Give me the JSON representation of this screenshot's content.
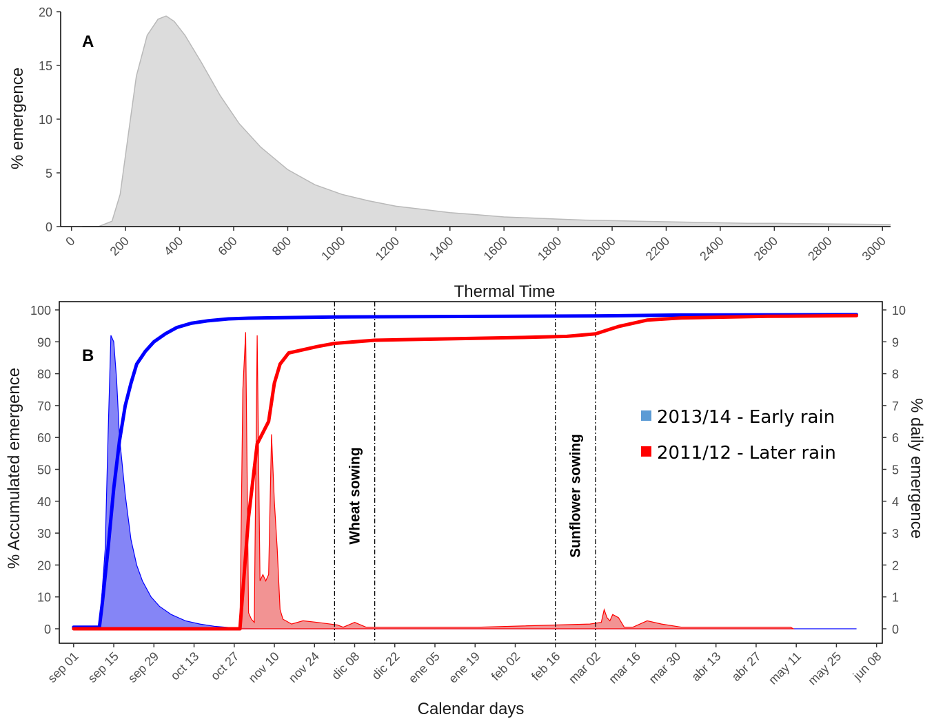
{
  "chart_data": [
    {
      "id": "A",
      "type": "area",
      "panel_label": "A",
      "xlabel": "Thermal Time",
      "ylabel": "% emergence",
      "xlim": [
        -40,
        3030
      ],
      "ylim": [
        0,
        20
      ],
      "x_ticks": [
        0,
        200,
        400,
        600,
        800,
        1000,
        1200,
        1400,
        1600,
        1800,
        2000,
        2200,
        2400,
        2600,
        2800,
        3000
      ],
      "y_ticks": [
        0,
        5,
        10,
        15,
        20
      ],
      "fill_color": "#dcdcdc",
      "line_color": "#b9b9b9",
      "x": [
        40,
        100,
        150,
        180,
        210,
        240,
        280,
        320,
        350,
        380,
        420,
        480,
        550,
        620,
        700,
        800,
        900,
        1000,
        1100,
        1200,
        1300,
        1400,
        1500,
        1600,
        1700,
        1800,
        1900,
        2000,
        2100,
        2200,
        2300,
        2400,
        2500,
        2600,
        2800,
        3000,
        3030
      ],
      "values": [
        0,
        0,
        0.5,
        3.0,
        8.5,
        14.0,
        17.8,
        19.3,
        19.6,
        19.1,
        17.8,
        15.3,
        12.2,
        9.6,
        7.4,
        5.3,
        3.9,
        3.0,
        2.4,
        1.9,
        1.6,
        1.3,
        1.1,
        0.9,
        0.8,
        0.7,
        0.6,
        0.55,
        0.5,
        0.45,
        0.4,
        0.35,
        0.3,
        0.3,
        0.25,
        0.2,
        0.2
      ]
    },
    {
      "id": "B",
      "type": "line",
      "panel_label": "B",
      "xlabel": "Calendar days",
      "ylabel_left": "% Accumulated emergence",
      "ylabel_right": "% daily emergence",
      "date_ticks": [
        "sep 01",
        "sep 15",
        "sep 29",
        "oct 13",
        "oct 27",
        "nov 10",
        "nov 24",
        "dic 08",
        "dic 22",
        "ene 05",
        "ene 19",
        "feb 02",
        "feb 16",
        "mar 02",
        "mar 16",
        "mar 30",
        "abr 13",
        "abr 27",
        "may 11",
        "may 25",
        "jun 08"
      ],
      "xlim": [
        "2013-08-27",
        "2014-06-10"
      ],
      "ylim_left": [
        0,
        100
      ],
      "ylim_right": [
        0,
        10
      ],
      "y_ticks_left": [
        0,
        10,
        20,
        30,
        40,
        50,
        60,
        70,
        80,
        90,
        100
      ],
      "y_ticks_right": [
        0,
        1,
        2,
        3,
        4,
        5,
        6,
        7,
        8,
        9,
        10
      ],
      "vertical_lines": [
        {
          "date": "2013-12-01",
          "label": "Wheat sowing"
        },
        {
          "date": "2013-12-15"
        },
        {
          "date": "2014-02-16",
          "label": "Sunflower sowing"
        },
        {
          "date": "2014-03-02"
        }
      ],
      "series": [
        {
          "name": "2013/14 - Early rain",
          "legend_color": "#5b9bd5",
          "line_color": "#0000ff",
          "fill_color": "#7070f5",
          "daily": {
            "x": [
              "2013-09-01",
              "2013-09-10",
              "2013-09-12",
              "2013-09-13",
              "2013-09-14",
              "2013-09-15",
              "2013-09-16",
              "2013-09-17",
              "2013-09-19",
              "2013-09-21",
              "2013-09-23",
              "2013-09-25",
              "2013-09-28",
              "2013-10-01",
              "2013-10-05",
              "2013-10-10",
              "2013-10-15",
              "2013-10-20",
              "2013-10-25",
              "2013-10-29",
              "2013-11-05",
              "2014-06-01"
            ],
            "values": [
              0,
              0,
              2.5,
              6.0,
              9.2,
              9.0,
              7.8,
              6.0,
              4.2,
              2.8,
              2.0,
              1.5,
              1.0,
              0.7,
              0.45,
              0.25,
              0.15,
              0.08,
              0.04,
              0.02,
              0,
              0
            ]
          },
          "accumulated": {
            "x": [
              "2013-09-01",
              "2013-09-10",
              "2013-09-11",
              "2013-09-13",
              "2013-09-15",
              "2013-09-17",
              "2013-09-19",
              "2013-09-21",
              "2013-09-23",
              "2013-09-26",
              "2013-09-29",
              "2013-10-03",
              "2013-10-07",
              "2013-10-12",
              "2013-10-18",
              "2013-10-25",
              "2013-11-01",
              "2013-11-15",
              "2013-12-01",
              "2014-03-01",
              "2014-04-01",
              "2014-06-01"
            ],
            "values": [
              0.5,
              0.5,
              8,
              25,
              44,
              59,
              70,
              77,
              83,
              87,
              90,
              92.5,
              94.5,
              95.8,
              96.6,
              97.2,
              97.4,
              97.6,
              97.8,
              98.1,
              98.4,
              98.5
            ]
          }
        },
        {
          "name": "2011/12 - Later rain",
          "legend_color": "#ff0000",
          "line_color": "#ff0000",
          "fill_color": "#f08080",
          "daily": {
            "x": [
              "2013-09-01",
              "2013-10-29",
              "2013-10-30",
              "2013-10-31",
              "2013-11-01",
              "2013-11-02",
              "2013-11-03",
              "2013-11-04",
              "2013-11-05",
              "2013-11-06",
              "2013-11-07",
              "2013-11-08",
              "2013-11-09",
              "2013-11-10",
              "2013-11-11",
              "2013-11-12",
              "2013-11-13",
              "2013-11-14",
              "2013-11-16",
              "2013-11-20",
              "2013-11-25",
              "2013-12-02",
              "2013-12-04",
              "2013-12-08",
              "2013-12-12",
              "2014-01-20",
              "2014-02-28",
              "2014-03-04",
              "2014-03-05",
              "2014-03-06",
              "2014-03-07",
              "2014-03-08",
              "2014-03-10",
              "2014-03-12",
              "2014-03-15",
              "2014-03-20",
              "2014-03-25",
              "2014-04-01",
              "2014-04-10",
              "2014-05-01",
              "2014-05-09",
              "2014-05-10"
            ],
            "values": [
              0,
              0,
              7.5,
              9.3,
              0.5,
              0.3,
              0.2,
              9.2,
              1.5,
              1.7,
              1.5,
              1.7,
              6.1,
              4.0,
              2.5,
              0.6,
              0.3,
              0.25,
              0.15,
              0.25,
              0.2,
              0.12,
              0.05,
              0.2,
              0.05,
              0.05,
              0.15,
              0.2,
              0.6,
              0.35,
              0.25,
              0.45,
              0.35,
              0.05,
              0.05,
              0.25,
              0.15,
              0.05,
              0.05,
              0.05,
              0.05,
              0
            ]
          },
          "accumulated": {
            "x": [
              "2013-09-01",
              "2013-10-29",
              "2013-11-01",
              "2013-11-04",
              "2013-11-08",
              "2013-11-10",
              "2013-11-12",
              "2013-11-15",
              "2013-11-25",
              "2013-12-01",
              "2013-12-15",
              "2014-01-01",
              "2014-02-01",
              "2014-02-20",
              "2014-03-02",
              "2014-03-10",
              "2014-03-20",
              "2014-04-01",
              "2014-05-01",
              "2014-06-01"
            ],
            "values": [
              0,
              0,
              35,
              58,
              65,
              77,
              83,
              86.5,
              88.5,
              89.5,
              90.5,
              90.8,
              91.3,
              91.7,
              92.5,
              94.8,
              96.8,
              97.5,
              98.0,
              98.2
            ]
          }
        }
      ]
    }
  ]
}
